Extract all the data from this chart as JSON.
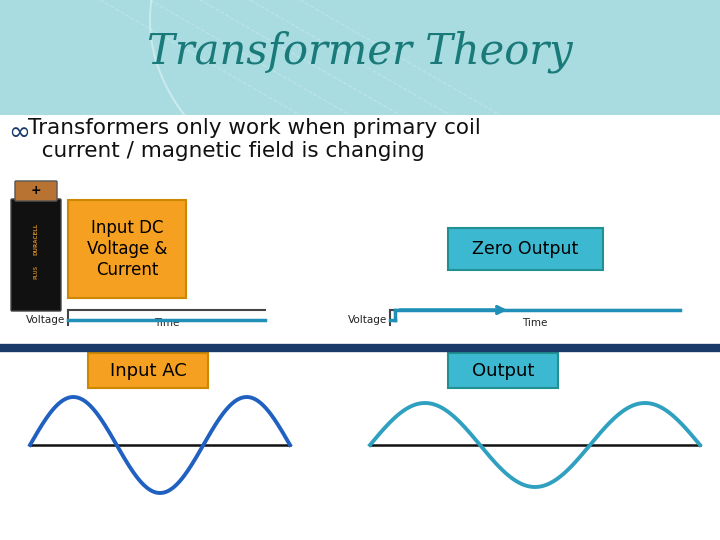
{
  "title": "Transformer Theory",
  "title_color": "#1a7a7a",
  "title_fontsize": 30,
  "bg_color": "#ffffff",
  "top_bg_color": "#a8dce0",
  "label_dc_input": "Input DC\nVoltage &\nCurrent",
  "label_zero_output": "Zero Output",
  "label_ac_input": "Input AC",
  "label_output": "Output",
  "box_orange": "#f5a020",
  "box_teal": "#3cb8d0",
  "line_color_dc": "#2090b8",
  "line_color_ac_left": "#2060c0",
  "line_color_ac_right": "#30a0c0",
  "axis_color": "#333333",
  "divider_color": "#1a3a6a",
  "voltage_label": "Voltage",
  "time_label": "Time",
  "bullet_symbol": "∞",
  "bullet_text1": "Transformers only work when primary coil",
  "bullet_text2": "  current / magnetic field is changing"
}
